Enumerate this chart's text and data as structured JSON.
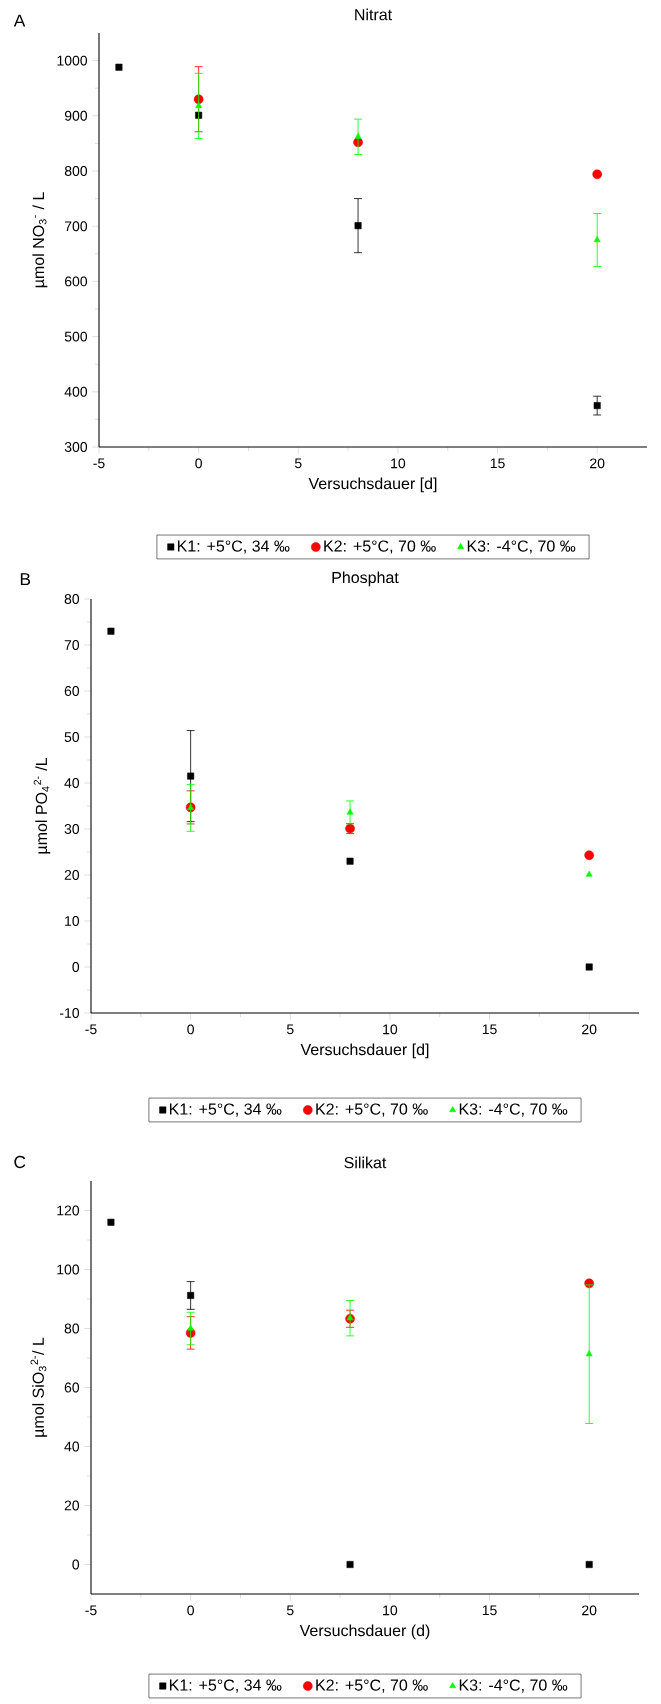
{
  "chart_data": [
    {
      "type": "scatter",
      "title": "Nitrat",
      "xlabel": "Versuchsdauer [d]",
      "ylabel": "µmol NO$_{3}$$^{-}$ / L",
      "annotations": [
        "A"
      ],
      "xlim": [
        -5,
        22.5
      ],
      "ylim": [
        300,
        1050
      ],
      "xticks": [
        -5,
        0,
        5,
        10,
        15,
        20
      ],
      "yticks": [
        300,
        400,
        500,
        600,
        700,
        800,
        900,
        1000
      ],
      "legend": "bottom",
      "series": [
        {
          "name": "K1: +5°C, 34 ‰",
          "color": "#000000",
          "marker": "square",
          "x": [
            -4,
            0,
            8,
            20
          ],
          "values": [
            988,
            901,
            701,
            375
          ],
          "errors": [
            null,
            null,
            49,
            17
          ]
        },
        {
          "name": "K2: +5°C, 70 ‰",
          "color": "#ff0000",
          "marker": "circle",
          "x": [
            0,
            8,
            20
          ],
          "values": [
            930,
            852,
            794
          ],
          "errors": [
            59,
            null,
            null
          ]
        },
        {
          "name": "K3:  -4°C, 70 ‰",
          "color": "#00ff00",
          "marker": "triangle",
          "x": [
            0,
            8,
            20
          ],
          "values": [
            918,
            862,
            675
          ],
          "errors": [
            59,
            32,
            48
          ]
        }
      ]
    },
    {
      "type": "scatter",
      "title": "Phosphat",
      "xlabel": "Versuchsdauer [d]",
      "ylabel": "µmol PO$_{4}$$^{2-}$ /L",
      "annotations": [
        "B"
      ],
      "xlim": [
        -5,
        22.5
      ],
      "ylim": [
        -10,
        80
      ],
      "xticks": [
        -5,
        0,
        5,
        10,
        15,
        20
      ],
      "yticks": [
        -10,
        0,
        10,
        20,
        30,
        40,
        50,
        60,
        70,
        80
      ],
      "legend": "bottom",
      "series": [
        {
          "name": "K1: +5°C, 34 ‰",
          "color": "#000000",
          "marker": "square",
          "x": [
            -4,
            0,
            8,
            20
          ],
          "values": [
            73,
            41.5,
            23,
            0
          ],
          "errors": [
            null,
            9.9,
            null,
            null
          ]
        },
        {
          "name": "K2: +5°C, 70 ‰",
          "color": "#ff0000",
          "marker": "circle",
          "x": [
            0,
            8,
            20
          ],
          "values": [
            34.7,
            30.1,
            24.3
          ],
          "errors": [
            3.6,
            1.1,
            null
          ]
        },
        {
          "name": "K3: -4°C, 70 ‰",
          "color": "#00ff00",
          "marker": "triangle",
          "x": [
            0,
            8,
            20
          ],
          "values": [
            34.6,
            33.6,
            20.1
          ],
          "errors": [
            5.1,
            2.5,
            null
          ]
        }
      ]
    },
    {
      "type": "scatter",
      "title": "Silikat",
      "xlabel": "Versuchsdauer (d)",
      "ylabel": "µmol SiO$_{3}$$^{2-}$/ L",
      "annotations": [
        "C"
      ],
      "xlim": [
        -5,
        22.5
      ],
      "ylim": [
        -10,
        130
      ],
      "xticks": [
        -5,
        0,
        5,
        10,
        15,
        20
      ],
      "yticks": [
        0,
        20,
        40,
        60,
        80,
        100,
        120
      ],
      "legend": "bottom",
      "series": [
        {
          "name": "K1: +5°C, 34 ‰",
          "color": "#000000",
          "marker": "square",
          "x": [
            -4,
            0,
            8,
            20
          ],
          "values": [
            116,
            91.2,
            0,
            0
          ],
          "errors": [
            null,
            4.7,
            null,
            null
          ]
        },
        {
          "name": "K2: +5°C, 70 ‰",
          "color": "#ff0000",
          "marker": "circle",
          "x": [
            0,
            8,
            20
          ],
          "values": [
            78.5,
            83.3,
            95.3
          ],
          "errors": [
            5.5,
            2.9,
            null
          ]
        },
        {
          "name": "K3: -4°C, 70 ‰",
          "color": "#00ff00",
          "marker": "triangle",
          "x": [
            0,
            8,
            20
          ],
          "values": [
            80,
            83.5,
            71.3
          ],
          "errors": [
            5.5,
            6,
            23.5
          ]
        }
      ]
    }
  ]
}
